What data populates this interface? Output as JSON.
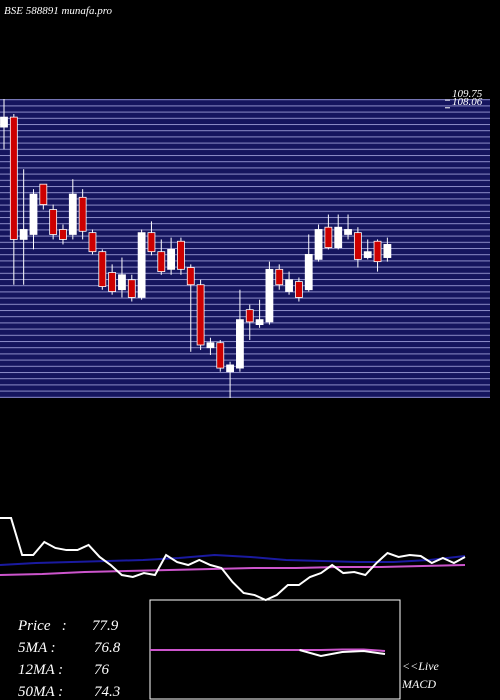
{
  "chart_data": {
    "type": "candlestick",
    "title": "BSE 588891 munafa.pro",
    "ylim": [
      44,
      110
    ],
    "yticks": [
      109.75,
      108.06
    ],
    "up_color": "#ffffff",
    "down_color": "#cc0000",
    "candles": [
      {
        "open": 103.8,
        "high": 110.0,
        "low": 98.9,
        "close": 106.0
      },
      {
        "open": 106.0,
        "high": 106.7,
        "low": 69.0,
        "close": 79.0
      },
      {
        "open": 79.0,
        "high": 94.5,
        "low": 69.0,
        "close": 81.2
      },
      {
        "open": 80.1,
        "high": 90.1,
        "low": 76.8,
        "close": 89.0
      },
      {
        "open": 91.2,
        "high": 91.2,
        "low": 85.6,
        "close": 86.7
      },
      {
        "open": 85.6,
        "high": 86.7,
        "low": 79.0,
        "close": 80.1
      },
      {
        "open": 81.2,
        "high": 82.3,
        "low": 77.9,
        "close": 79.0
      },
      {
        "open": 80.1,
        "high": 92.3,
        "low": 79.0,
        "close": 89.0
      },
      {
        "open": 88.3,
        "high": 90.1,
        "low": 79.0,
        "close": 80.8
      },
      {
        "open": 80.5,
        "high": 81.2,
        "low": 75.7,
        "close": 76.3
      },
      {
        "open": 76.3,
        "high": 76.8,
        "low": 67.9,
        "close": 68.6
      },
      {
        "open": 71.7,
        "high": 73.5,
        "low": 66.8,
        "close": 67.5
      },
      {
        "open": 67.9,
        "high": 75.0,
        "low": 66.2,
        "close": 71.2
      },
      {
        "open": 70.1,
        "high": 71.2,
        "low": 65.3,
        "close": 66.2
      },
      {
        "open": 66.2,
        "high": 81.2,
        "low": 65.7,
        "close": 80.5
      },
      {
        "open": 80.5,
        "high": 83.0,
        "low": 75.5,
        "close": 76.3
      },
      {
        "open": 76.3,
        "high": 79.0,
        "low": 71.2,
        "close": 71.9
      },
      {
        "open": 72.4,
        "high": 79.4,
        "low": 71.2,
        "close": 76.8
      },
      {
        "open": 78.6,
        "high": 79.4,
        "low": 71.2,
        "close": 72.4
      },
      {
        "open": 72.8,
        "high": 73.5,
        "low": 54.2,
        "close": 69.0
      },
      {
        "open": 69.0,
        "high": 70.1,
        "low": 54.6,
        "close": 55.7
      },
      {
        "open": 55.1,
        "high": 57.3,
        "low": 53.5,
        "close": 56.2
      },
      {
        "open": 56.2,
        "high": 56.8,
        "low": 49.8,
        "close": 50.6
      },
      {
        "open": 49.8,
        "high": 52.0,
        "low": 44.0,
        "close": 51.3
      },
      {
        "open": 50.6,
        "high": 67.9,
        "low": 49.8,
        "close": 61.3
      },
      {
        "open": 63.5,
        "high": 64.6,
        "low": 56.8,
        "close": 60.8
      },
      {
        "open": 60.2,
        "high": 65.7,
        "low": 59.5,
        "close": 61.3
      },
      {
        "open": 60.8,
        "high": 74.1,
        "low": 60.2,
        "close": 72.4
      },
      {
        "open": 72.4,
        "high": 73.5,
        "low": 67.9,
        "close": 69.0
      },
      {
        "open": 67.5,
        "high": 71.9,
        "low": 66.8,
        "close": 70.1
      },
      {
        "open": 69.7,
        "high": 70.6,
        "low": 65.3,
        "close": 66.2
      },
      {
        "open": 67.9,
        "high": 80.1,
        "low": 67.5,
        "close": 75.7
      },
      {
        "open": 74.6,
        "high": 82.3,
        "low": 74.1,
        "close": 81.2
      },
      {
        "open": 81.7,
        "high": 84.5,
        "low": 76.8,
        "close": 77.2
      },
      {
        "open": 77.2,
        "high": 84.5,
        "low": 76.8,
        "close": 81.7
      },
      {
        "open": 80.1,
        "high": 84.5,
        "low": 79.0,
        "close": 81.2
      },
      {
        "open": 80.5,
        "high": 81.7,
        "low": 72.8,
        "close": 74.6
      },
      {
        "open": 75.0,
        "high": 79.0,
        "low": 74.6,
        "close": 76.3
      },
      {
        "open": 78.6,
        "high": 79.0,
        "low": 71.9,
        "close": 74.1
      },
      {
        "open": 75.0,
        "high": 79.4,
        "low": 74.1,
        "close": 77.9
      }
    ],
    "indicator": {
      "ylim": [
        0,
        100
      ],
      "series": [
        {
          "color": "#ffffff",
          "values": [
            83.6,
            83.6,
            50,
            50,
            61.8,
            56.4,
            54.5,
            54.5,
            59.1,
            48.2,
            40.9,
            31.8,
            30,
            33.6,
            31.8,
            50,
            43.6,
            40.9,
            45.5,
            40.9,
            38.2,
            25.5,
            15.5,
            13.6,
            9.1,
            13.6,
            22.7,
            22.7,
            30,
            33.6,
            40.9,
            33.6,
            34.5,
            31.8,
            42.7,
            51.8,
            48.2,
            50,
            49.1,
            42.7,
            47.3,
            42.7,
            48.2
          ]
        },
        {
          "color": "#1a1aa0",
          "values": [
            40.9,
            42.7,
            43.6,
            44.5,
            45.5,
            47.3,
            50,
            48.2,
            45.5,
            44.5,
            43.6,
            43.6,
            45.5,
            49.1
          ]
        },
        {
          "color": "#cc55cc",
          "values": [
            31.8,
            32.7,
            34.5,
            35.5,
            36.4,
            37.3,
            38.2,
            38.2,
            39.1,
            39.1,
            40,
            40.9
          ]
        }
      ]
    },
    "macd": {
      "label": "MACD",
      "ylim": [
        -50,
        50
      ],
      "series": [
        {
          "color": "#cc55cc",
          "values": [
            0,
            0,
            0,
            0,
            0,
            0,
            0,
            0,
            0,
            0.5,
            0.5,
            -1
          ]
        },
        {
          "color": "#ffffff",
          "values": [
            null,
            null,
            null,
            null,
            null,
            null,
            null,
            0,
            -6,
            -2,
            -1,
            -4
          ]
        }
      ]
    },
    "live_label": "<<Live",
    "stats": [
      {
        "label": "Price   :",
        "value": 77.9
      },
      {
        "label": "5MA :",
        "value": 76.8
      },
      {
        "label": "12MA :",
        "value": 76
      },
      {
        "label": "50MA :",
        "value": 74.3
      }
    ]
  }
}
